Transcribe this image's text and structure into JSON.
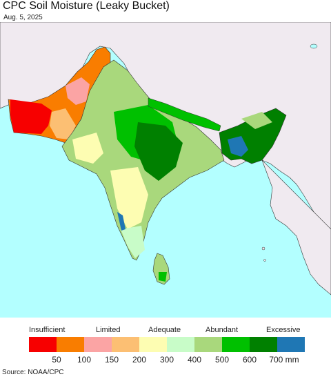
{
  "title": "CPC Soil Moisture (Leaky Bucket)",
  "date": "Aug. 5, 2025",
  "legend": {
    "categories": [
      "Insufficient",
      "Limited",
      "Adequate",
      "Abundant",
      "Excessive"
    ],
    "colors": [
      "#f70000",
      "#f97d00",
      "#fba4a4",
      "#fcbf73",
      "#fdfdb2",
      "#c8fcc8",
      "#a9d87c",
      "#00c000",
      "#008000",
      "#1f77b4"
    ],
    "ticks": [
      "50",
      "100",
      "150",
      "200",
      "300",
      "400",
      "500",
      "600",
      "700 mm"
    ]
  },
  "source": "Source: NOAA/CPC",
  "colors": {
    "ocean": "#b3ffff",
    "land_other": "#f0eaf0",
    "border": "#222222"
  }
}
